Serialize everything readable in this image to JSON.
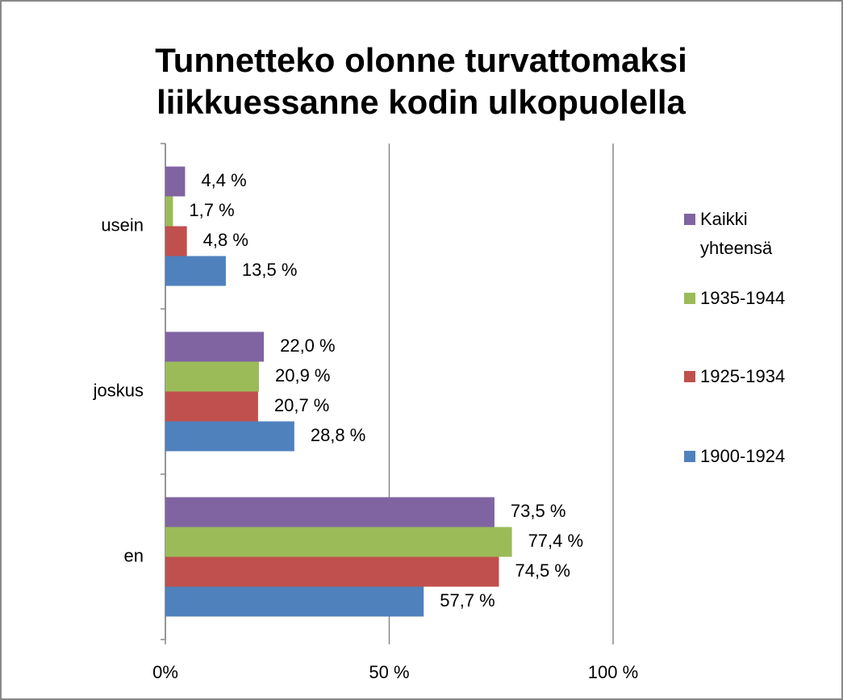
{
  "chart_data": {
    "type": "bar",
    "orientation": "horizontal",
    "title": [
      "Tunnetteko olonne turvattomaksi",
      "liikkuessanne kodin ulkopuolella"
    ],
    "categories": [
      "usein",
      "joskus",
      "en"
    ],
    "series": [
      {
        "name": "Kaikki yhteensä",
        "color": "#8064a2",
        "values": [
          4.4,
          22.0,
          73.5
        ],
        "value_labels": [
          "4,4 %",
          "22,0 %",
          "73,5 %"
        ]
      },
      {
        "name": "1935-1944",
        "color": "#9bbb59",
        "values": [
          1.7,
          20.9,
          77.4
        ],
        "value_labels": [
          "1,7 %",
          "20,9 %",
          "77,4 %"
        ]
      },
      {
        "name": "1925-1934",
        "color": "#c0504d",
        "values": [
          4.8,
          20.7,
          74.5
        ],
        "value_labels": [
          "4,8 %",
          "20,7 %",
          "74,5 %"
        ]
      },
      {
        "name": "1900-1924",
        "color": "#4f81bd",
        "values": [
          13.5,
          28.8,
          57.7
        ],
        "value_labels": [
          "13,5 %",
          "28,8 %",
          "57,7 %"
        ]
      }
    ],
    "xlim": [
      0,
      100
    ],
    "xticks": [
      {
        "value": 0,
        "label": "0%"
      },
      {
        "value": 50,
        "label": "50 %"
      },
      {
        "value": 100,
        "label": "100 %"
      }
    ],
    "grid": true,
    "legend": "right"
  }
}
